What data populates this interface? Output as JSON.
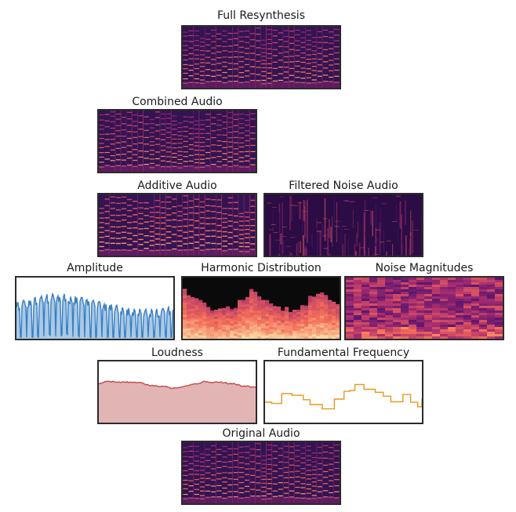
{
  "panels": {
    "full_resynthesis": {
      "title": "Full Resynthesis",
      "kind": "spectrogram"
    },
    "combined_audio": {
      "title": "Combined Audio",
      "kind": "spectrogram"
    },
    "additive_audio": {
      "title": "Additive Audio",
      "kind": "spectrogram"
    },
    "filtered_noise_audio": {
      "title": "Filtered Noise Audio",
      "kind": "spectrogram"
    },
    "amplitude": {
      "title": "Amplitude",
      "kind": "area-plot",
      "color": "#3a7fc1",
      "fill": "#a9c9e6"
    },
    "harmonic_distribution": {
      "title": "Harmonic Distribution",
      "kind": "heatmap"
    },
    "noise_magnitudes": {
      "title": "Noise Magnitudes",
      "kind": "heatmap"
    },
    "loudness": {
      "title": "Loudness",
      "kind": "area-plot",
      "color": "#c0494b",
      "fill": "#e2b4b4"
    },
    "fundamental_frequency": {
      "title": "Fundamental Frequency",
      "kind": "step-line",
      "color": "#e39a1f"
    },
    "original_audio": {
      "title": "Original Audio",
      "kind": "spectrogram"
    }
  },
  "colors": {
    "spectrogram_bg": "#2a0f45",
    "spectrogram_mid": "#8a2b6e",
    "spectrogram_hot": "#f6c58c",
    "border": "#2b2b2b"
  }
}
